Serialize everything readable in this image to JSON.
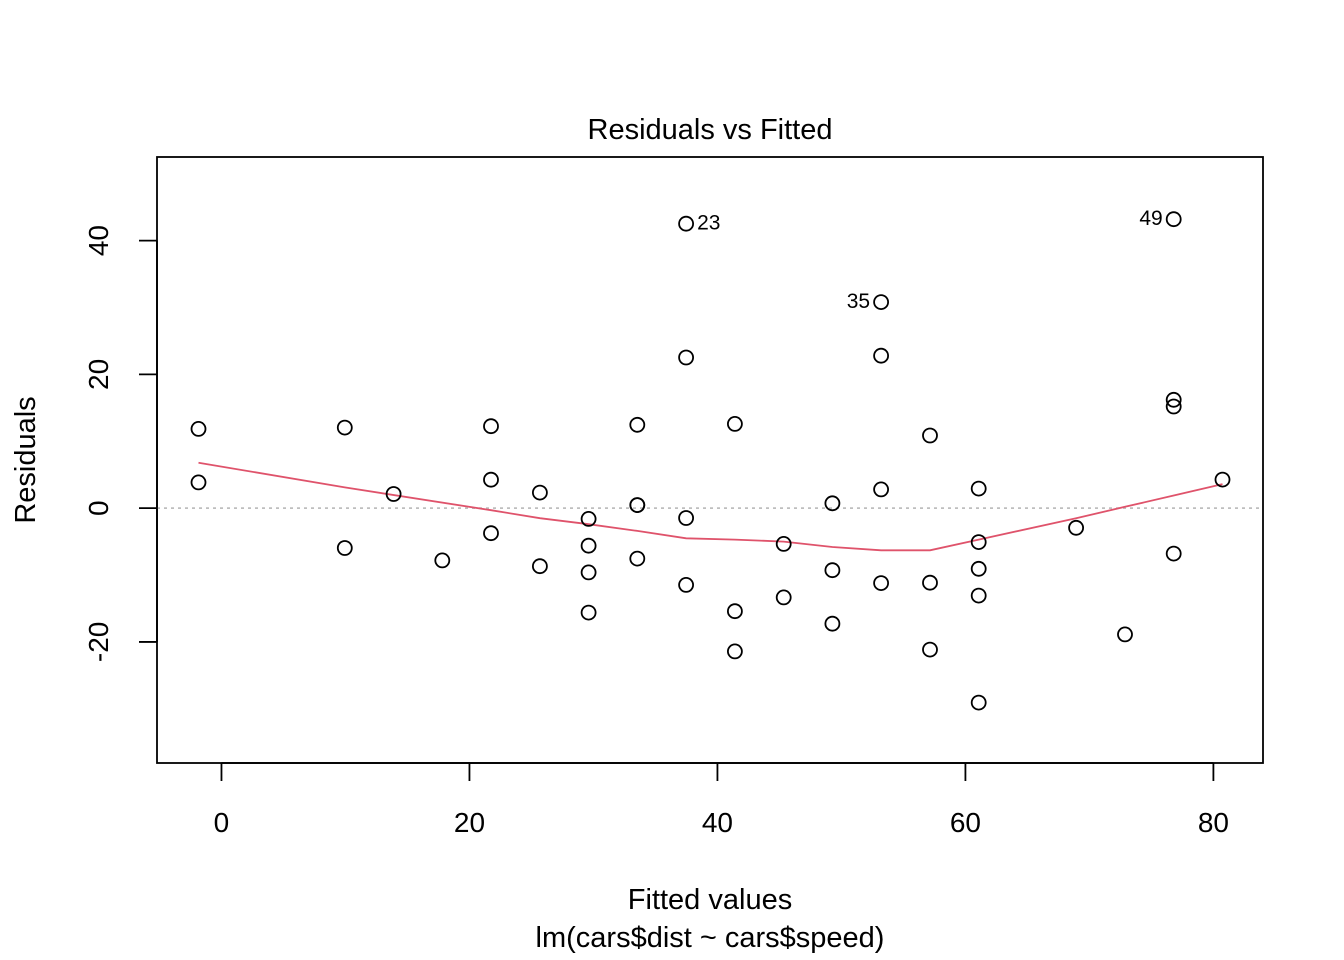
{
  "chart_data": {
    "type": "scatter",
    "title": "Residuals vs Fitted",
    "xlabel": "Fitted values",
    "subtitle": "lm(cars$dist ~ cars$speed)",
    "ylabel": "Residuals",
    "xlim": [
      -5.2,
      84.0
    ],
    "ylim": [
      -38.1,
      52.5
    ],
    "xticks": [
      0,
      20,
      40,
      60,
      80
    ],
    "yticks": [
      -20,
      0,
      20,
      40
    ],
    "grid": false,
    "reference_line_y": 0,
    "points": [
      {
        "x": -1.85,
        "y": 3.85
      },
      {
        "x": -1.85,
        "y": 11.85
      },
      {
        "x": 9.95,
        "y": -5.95
      },
      {
        "x": 9.95,
        "y": 12.05
      },
      {
        "x": 13.88,
        "y": 2.12
      },
      {
        "x": 17.81,
        "y": -7.81
      },
      {
        "x": 21.74,
        "y": -3.74
      },
      {
        "x": 21.74,
        "y": 4.26
      },
      {
        "x": 21.74,
        "y": 12.26
      },
      {
        "x": 25.68,
        "y": -8.68
      },
      {
        "x": 25.68,
        "y": 2.32
      },
      {
        "x": 29.61,
        "y": -15.61
      },
      {
        "x": 29.61,
        "y": -9.61
      },
      {
        "x": 29.61,
        "y": -5.61
      },
      {
        "x": 29.61,
        "y": -1.61
      },
      {
        "x": 33.54,
        "y": -7.54
      },
      {
        "x": 33.54,
        "y": 0.46
      },
      {
        "x": 33.54,
        "y": 0.46
      },
      {
        "x": 33.54,
        "y": 12.46
      },
      {
        "x": 37.47,
        "y": -11.47
      },
      {
        "x": 37.47,
        "y": -1.47
      },
      {
        "x": 37.47,
        "y": 22.53
      },
      {
        "x": 37.47,
        "y": 42.53,
        "label": "23",
        "label_side": "right"
      },
      {
        "x": 41.41,
        "y": -21.41
      },
      {
        "x": 41.41,
        "y": -15.41
      },
      {
        "x": 41.41,
        "y": 12.59
      },
      {
        "x": 45.34,
        "y": -13.34
      },
      {
        "x": 45.34,
        "y": -5.34
      },
      {
        "x": 49.27,
        "y": -17.27
      },
      {
        "x": 49.27,
        "y": -9.27
      },
      {
        "x": 49.27,
        "y": 0.73
      },
      {
        "x": 53.2,
        "y": -11.2
      },
      {
        "x": 53.2,
        "y": 2.8
      },
      {
        "x": 53.2,
        "y": 22.8
      },
      {
        "x": 53.2,
        "y": 30.8,
        "label": "35",
        "label_side": "left"
      },
      {
        "x": 57.14,
        "y": -21.14
      },
      {
        "x": 57.14,
        "y": -11.14
      },
      {
        "x": 57.14,
        "y": 10.86
      },
      {
        "x": 61.07,
        "y": -29.07
      },
      {
        "x": 61.07,
        "y": -13.07
      },
      {
        "x": 61.07,
        "y": -9.07
      },
      {
        "x": 61.07,
        "y": -5.07
      },
      {
        "x": 61.07,
        "y": 2.93
      },
      {
        "x": 68.93,
        "y": -2.93
      },
      {
        "x": 72.87,
        "y": -18.87
      },
      {
        "x": 76.8,
        "y": -6.8
      },
      {
        "x": 76.8,
        "y": 15.2
      },
      {
        "x": 76.8,
        "y": 16.2
      },
      {
        "x": 76.8,
        "y": 43.2,
        "label": "49",
        "label_side": "left"
      },
      {
        "x": 80.73,
        "y": 4.27
      }
    ],
    "smooth_line": {
      "color": "#DF536B",
      "x": [
        -1.85,
        9.95,
        21.74,
        25.68,
        29.61,
        33.54,
        37.47,
        41.41,
        45.34,
        49.27,
        53.2,
        57.14,
        61.07,
        68.93,
        72.87,
        76.8,
        80.73
      ],
      "y": [
        6.8,
        3.1,
        -0.3,
        -1.5,
        -2.4,
        -3.4,
        -4.5,
        -4.7,
        -5.0,
        -5.8,
        -6.3,
        -6.3,
        -4.7,
        -1.5,
        0.2,
        1.9,
        3.6
      ]
    },
    "colors": {
      "points": "#000000",
      "reference_line": "#BEBEBE",
      "smooth": "#DF536B",
      "axes": "#000000"
    }
  }
}
